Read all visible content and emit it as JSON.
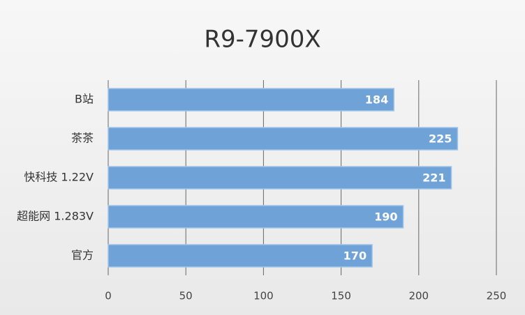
{
  "chart_data": {
    "type": "bar",
    "orientation": "horizontal",
    "title": "R9-7900X",
    "categories": [
      "B站",
      "茶茶",
      "快科技 1.22V",
      "超能网 1.283V",
      "官方"
    ],
    "values": [
      184,
      225,
      221,
      190,
      170
    ],
    "color": "#6fa3d8",
    "xlim": [
      0,
      250
    ],
    "xticks": [
      0,
      50,
      100,
      150,
      200,
      250
    ],
    "grid": true
  }
}
